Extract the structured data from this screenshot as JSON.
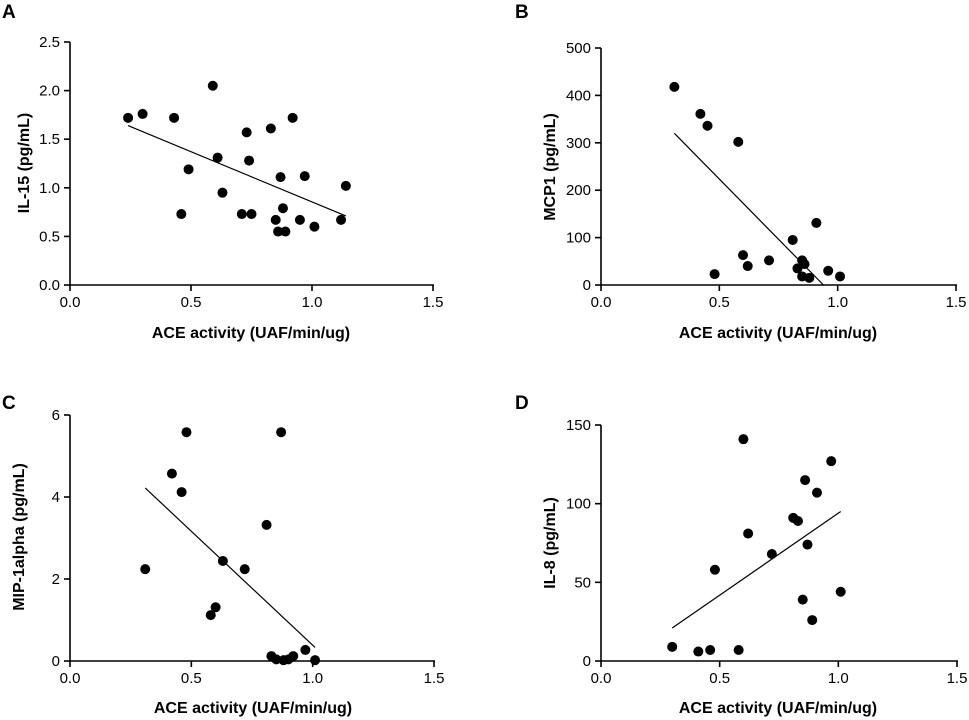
{
  "chart_data": [
    {
      "type": "scatter",
      "panel": "A",
      "xlabel": "ACE activity (UAF/min/ug)",
      "ylabel": "IL-15 (pg/mL)",
      "xlim": [
        0,
        1.5
      ],
      "ylim": [
        0,
        2.5
      ],
      "xticks": [
        0,
        0.5,
        1.0,
        1.5
      ],
      "xtick_labels": [
        "0.0",
        "0.5",
        "1.0",
        "1.5"
      ],
      "yticks": [
        0,
        0.5,
        1.0,
        1.5,
        2.0,
        2.5
      ],
      "ytick_labels": [
        "0.0",
        "0.5",
        "1.0",
        "1.5",
        "2.0",
        "2.5"
      ],
      "points": [
        {
          "x": 0.24,
          "y": 1.72
        },
        {
          "x": 0.3,
          "y": 1.76
        },
        {
          "x": 0.43,
          "y": 1.72
        },
        {
          "x": 0.46,
          "y": 0.73
        },
        {
          "x": 0.49,
          "y": 1.19
        },
        {
          "x": 0.59,
          "y": 2.05
        },
        {
          "x": 0.61,
          "y": 1.31
        },
        {
          "x": 0.63,
          "y": 0.95
        },
        {
          "x": 0.71,
          "y": 0.73
        },
        {
          "x": 0.73,
          "y": 1.57
        },
        {
          "x": 0.74,
          "y": 1.28
        },
        {
          "x": 0.75,
          "y": 0.73
        },
        {
          "x": 0.83,
          "y": 1.61
        },
        {
          "x": 0.85,
          "y": 0.67
        },
        {
          "x": 0.86,
          "y": 0.55
        },
        {
          "x": 0.87,
          "y": 1.11
        },
        {
          "x": 0.88,
          "y": 0.79
        },
        {
          "x": 0.89,
          "y": 0.55
        },
        {
          "x": 0.92,
          "y": 1.72
        },
        {
          "x": 0.95,
          "y": 0.67
        },
        {
          "x": 0.97,
          "y": 1.12
        },
        {
          "x": 1.01,
          "y": 0.6
        },
        {
          "x": 1.12,
          "y": 0.67
        },
        {
          "x": 1.14,
          "y": 1.02
        }
      ],
      "fit_line": {
        "x": [
          0.24,
          1.14
        ],
        "y": [
          1.64,
          0.71
        ]
      }
    },
    {
      "type": "scatter",
      "panel": "B",
      "xlabel": "ACE activity (UAF/min/ug)",
      "ylabel": "MCP1 (pg/mL)",
      "xlim": [
        0,
        1.5
      ],
      "ylim": [
        0,
        500
      ],
      "xticks": [
        0,
        0.5,
        1.0,
        1.5
      ],
      "xtick_labels": [
        "0.0",
        "0.5",
        "1.0",
        "1.5"
      ],
      "yticks": [
        0,
        100,
        200,
        300,
        400,
        500
      ],
      "ytick_labels": [
        "0",
        "100",
        "200",
        "300",
        "400",
        "500"
      ],
      "points": [
        {
          "x": 0.31,
          "y": 418
        },
        {
          "x": 0.42,
          "y": 361
        },
        {
          "x": 0.45,
          "y": 336
        },
        {
          "x": 0.48,
          "y": 23
        },
        {
          "x": 0.58,
          "y": 302
        },
        {
          "x": 0.6,
          "y": 63
        },
        {
          "x": 0.62,
          "y": 40
        },
        {
          "x": 0.71,
          "y": 52
        },
        {
          "x": 0.81,
          "y": 95
        },
        {
          "x": 0.83,
          "y": 35
        },
        {
          "x": 0.85,
          "y": 52
        },
        {
          "x": 0.86,
          "y": 44
        },
        {
          "x": 0.85,
          "y": 18
        },
        {
          "x": 0.88,
          "y": 15
        },
        {
          "x": 0.91,
          "y": 131
        },
        {
          "x": 0.96,
          "y": 30
        },
        {
          "x": 1.01,
          "y": 18
        }
      ],
      "fit_line": {
        "x": [
          0.31,
          0.94
        ],
        "y": [
          320,
          0
        ]
      }
    },
    {
      "type": "scatter",
      "panel": "C",
      "xlabel": "ACE activity (UAF/min/ug)",
      "ylabel": "MIP-1alpha (pg/mL)",
      "xlim": [
        0,
        1.5
      ],
      "ylim": [
        0,
        6
      ],
      "xticks": [
        0,
        0.5,
        1.0,
        1.5
      ],
      "xtick_labels": [
        "0.0",
        "0.5",
        "1.0",
        "1.5"
      ],
      "yticks": [
        0,
        2,
        4,
        6
      ],
      "ytick_labels": [
        "0",
        "2",
        "4",
        "6"
      ],
      "points": [
        {
          "x": 0.31,
          "y": 2.24
        },
        {
          "x": 0.42,
          "y": 4.57
        },
        {
          "x": 0.46,
          "y": 4.12
        },
        {
          "x": 0.48,
          "y": 5.58
        },
        {
          "x": 0.58,
          "y": 1.12
        },
        {
          "x": 0.6,
          "y": 1.31
        },
        {
          "x": 0.63,
          "y": 2.44
        },
        {
          "x": 0.72,
          "y": 2.24
        },
        {
          "x": 0.81,
          "y": 3.32
        },
        {
          "x": 0.83,
          "y": 0.12
        },
        {
          "x": 0.85,
          "y": 0.04
        },
        {
          "x": 0.87,
          "y": 5.58
        },
        {
          "x": 0.88,
          "y": 0.02
        },
        {
          "x": 0.9,
          "y": 0.04
        },
        {
          "x": 0.92,
          "y": 0.12
        },
        {
          "x": 0.97,
          "y": 0.27
        },
        {
          "x": 1.01,
          "y": 0.02
        }
      ],
      "fit_line": {
        "x": [
          0.31,
          1.01
        ],
        "y": [
          4.22,
          0.33
        ]
      }
    },
    {
      "type": "scatter",
      "panel": "D",
      "xlabel": "ACE activity (UAF/min/ug)",
      "ylabel": "IL-8 (pg/mL)",
      "xlim": [
        0,
        1.5
      ],
      "ylim": [
        0,
        150
      ],
      "xticks": [
        0,
        0.5,
        1.0,
        1.5
      ],
      "xtick_labels": [
        "0.0",
        "0.5",
        "1.0",
        "1.5"
      ],
      "yticks": [
        0,
        50,
        100,
        150
      ],
      "ytick_labels": [
        "0",
        "50",
        "100",
        "150"
      ],
      "points": [
        {
          "x": 0.3,
          "y": 9
        },
        {
          "x": 0.41,
          "y": 6
        },
        {
          "x": 0.46,
          "y": 7
        },
        {
          "x": 0.48,
          "y": 58
        },
        {
          "x": 0.58,
          "y": 7
        },
        {
          "x": 0.6,
          "y": 141
        },
        {
          "x": 0.62,
          "y": 81
        },
        {
          "x": 0.72,
          "y": 68
        },
        {
          "x": 0.81,
          "y": 91
        },
        {
          "x": 0.83,
          "y": 89
        },
        {
          "x": 0.85,
          "y": 39
        },
        {
          "x": 0.86,
          "y": 115
        },
        {
          "x": 0.87,
          "y": 74
        },
        {
          "x": 0.89,
          "y": 26
        },
        {
          "x": 0.91,
          "y": 107
        },
        {
          "x": 0.97,
          "y": 127
        },
        {
          "x": 1.01,
          "y": 44
        }
      ],
      "fit_line": {
        "x": [
          0.3,
          1.01
        ],
        "y": [
          21,
          95
        ]
      }
    }
  ]
}
